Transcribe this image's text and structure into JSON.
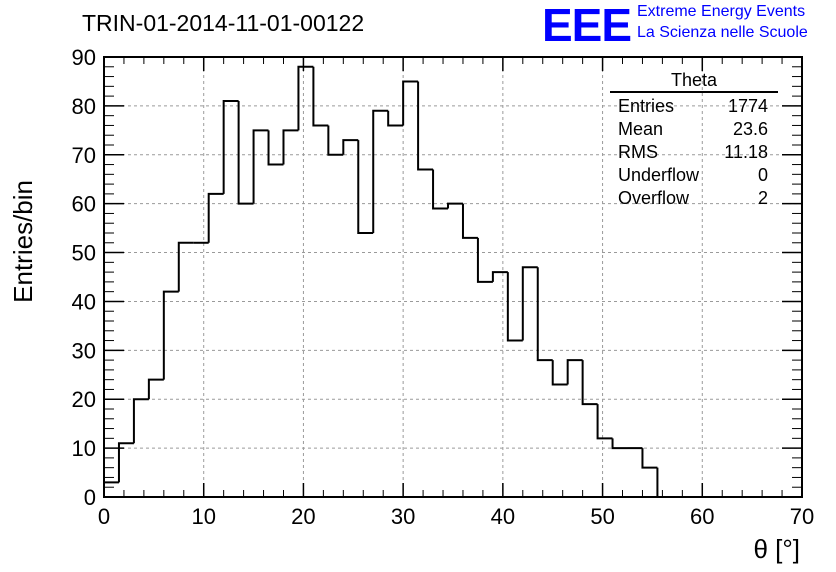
{
  "header": {
    "run_label": "TRIN-01-2014-11-01-00122",
    "logo_mark": "EEE",
    "logo_line1": "Extreme Energy Events",
    "logo_line2": "La Scienza nelle Scuole"
  },
  "stats_box": {
    "title": "Theta",
    "rows": [
      {
        "label": "Entries",
        "value": "1774"
      },
      {
        "label": "Mean",
        "value": "23.6"
      },
      {
        "label": "RMS",
        "value": "11.18"
      },
      {
        "label": "Underflow",
        "value": "0"
      },
      {
        "label": "Overflow",
        "value": "2"
      }
    ]
  },
  "chart_data": {
    "type": "bar",
    "title": "TRIN-01-2014-11-01-00122",
    "xlabel": "θ [°]",
    "ylabel": "Entries/bin",
    "xlim": [
      0,
      70
    ],
    "ylim": [
      0,
      90
    ],
    "grid": true,
    "bin_width": 1.5,
    "bin_edges_start": 0,
    "x_ticks": [
      "0",
      "10",
      "20",
      "30",
      "40",
      "50",
      "60",
      "70"
    ],
    "y_ticks": [
      "0",
      "10",
      "20",
      "30",
      "40",
      "50",
      "60",
      "70",
      "80",
      "90"
    ],
    "values": [
      3,
      11,
      20,
      24,
      42,
      52,
      52,
      62,
      81,
      60,
      75,
      68,
      75,
      88,
      76,
      70,
      73,
      54,
      79,
      76,
      85,
      67,
      59,
      60,
      53,
      44,
      46,
      32,
      47,
      28,
      23,
      28,
      19,
      12,
      10,
      10,
      6,
      0
    ]
  }
}
